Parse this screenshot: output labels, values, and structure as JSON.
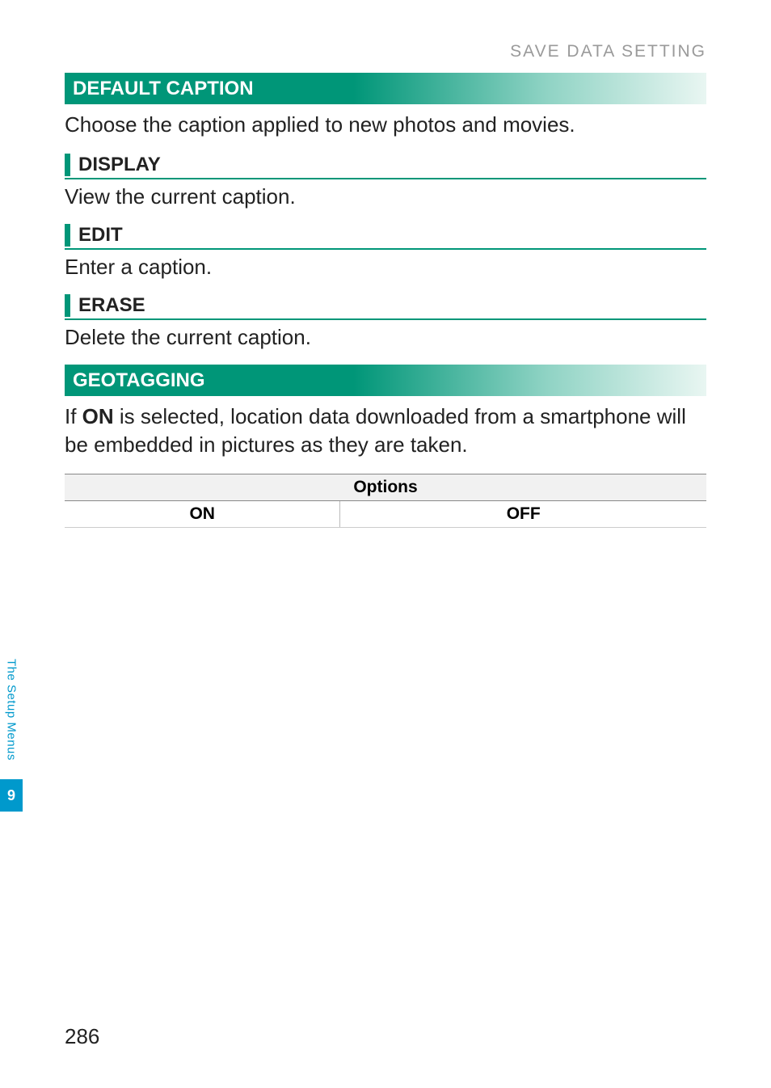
{
  "header": {
    "label": "SAVE DATA SETTING"
  },
  "sections": {
    "defaultCaption": {
      "title": "DEFAULT CAPTION",
      "desc": "Choose the caption applied to new photos and movies.",
      "subs": {
        "display": {
          "title": "DISPLAY",
          "desc": "View the current caption."
        },
        "edit": {
          "title": "EDIT",
          "desc": "Enter a caption."
        },
        "erase": {
          "title": "ERASE",
          "desc": "Delete the current caption."
        }
      }
    },
    "geotagging": {
      "title": "GEOTAGGING",
      "desc_pre": "If ",
      "desc_bold": "ON",
      "desc_post": " is selected, location data downloaded from a smartphone will be embedded in pictures as they are taken.",
      "options": {
        "header": "Options",
        "left": "ON",
        "right": "OFF"
      }
    }
  },
  "sideTab": {
    "text": "The Setup Menus",
    "chapter": "9"
  },
  "pageNumber": "286",
  "colors": {
    "accent": "#009678",
    "sideTab": "#0099cc",
    "headerGrey": "#9a9a9a",
    "optHeadBg": "#f1f1f1"
  }
}
